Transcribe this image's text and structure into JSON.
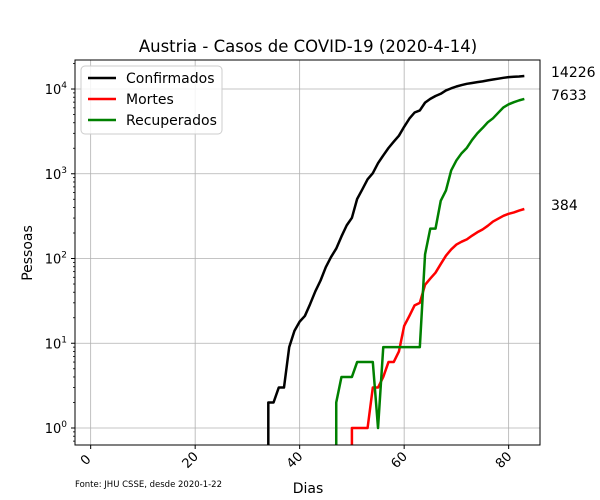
{
  "chart_data": {
    "type": "line",
    "title": "Austria - Casos de COVID-19 (2020-4-14)",
    "xlabel": "Dias",
    "ylabel": "Pessoas",
    "yscale": "log",
    "xlim": [
      -3,
      86
    ],
    "ylim": [
      0.63,
      22000
    ],
    "x_ticks": [
      0,
      20,
      40,
      60,
      80
    ],
    "y_ticks": [
      {
        "value": 1,
        "base": "10",
        "exp": "0"
      },
      {
        "value": 10,
        "base": "10",
        "exp": "1"
      },
      {
        "value": 100,
        "base": "10",
        "exp": "2"
      },
      {
        "value": 1000,
        "base": "10",
        "exp": "3"
      },
      {
        "value": 10000,
        "base": "10",
        "exp": "4"
      }
    ],
    "grid": true,
    "legend_position": "top-left",
    "series": [
      {
        "name": "Confirmados",
        "color": "#000000",
        "points": [
          [
            34,
            0.1
          ],
          [
            34,
            2
          ],
          [
            35,
            2
          ],
          [
            36,
            3
          ],
          [
            37,
            3
          ],
          [
            38,
            9
          ],
          [
            39,
            14
          ],
          [
            40,
            18
          ],
          [
            41,
            21
          ],
          [
            42,
            29
          ],
          [
            43,
            41
          ],
          [
            44,
            55
          ],
          [
            45,
            79
          ],
          [
            46,
            104
          ],
          [
            47,
            131
          ],
          [
            48,
            182
          ],
          [
            49,
            246
          ],
          [
            50,
            302
          ],
          [
            51,
            504
          ],
          [
            52,
            655
          ],
          [
            53,
            860
          ],
          [
            54,
            1016
          ],
          [
            55,
            1332
          ],
          [
            56,
            1646
          ],
          [
            57,
            2013
          ],
          [
            58,
            2388
          ],
          [
            59,
            2814
          ],
          [
            60,
            3582
          ],
          [
            61,
            4474
          ],
          [
            62,
            5283
          ],
          [
            63,
            5588
          ],
          [
            64,
            6909
          ],
          [
            65,
            7657
          ],
          [
            66,
            8271
          ],
          [
            67,
            8788
          ],
          [
            68,
            9618
          ],
          [
            69,
            10180
          ],
          [
            70,
            10711
          ],
          [
            71,
            11129
          ],
          [
            72,
            11524
          ],
          [
            73,
            11781
          ],
          [
            74,
            12051
          ],
          [
            75,
            12297
          ],
          [
            76,
            12639
          ],
          [
            77,
            12942
          ],
          [
            78,
            13244
          ],
          [
            79,
            13555
          ],
          [
            80,
            13806
          ],
          [
            81,
            13945
          ],
          [
            82,
            14041
          ],
          [
            83,
            14226
          ]
        ],
        "end_label": "14226"
      },
      {
        "name": "Mortes",
        "color": "#ff0000",
        "points": [
          [
            50,
            0.1
          ],
          [
            50,
            1
          ],
          [
            51,
            1
          ],
          [
            52,
            1
          ],
          [
            53,
            1
          ],
          [
            54,
            3
          ],
          [
            55,
            3
          ],
          [
            56,
            4
          ],
          [
            57,
            6
          ],
          [
            58,
            6
          ],
          [
            59,
            8
          ],
          [
            60,
            16
          ],
          [
            61,
            21
          ],
          [
            62,
            28
          ],
          [
            63,
            30
          ],
          [
            64,
            49
          ],
          [
            65,
            58
          ],
          [
            66,
            68
          ],
          [
            67,
            86
          ],
          [
            68,
            108
          ],
          [
            69,
            128
          ],
          [
            70,
            146
          ],
          [
            71,
            158
          ],
          [
            72,
            168
          ],
          [
            73,
            186
          ],
          [
            74,
            204
          ],
          [
            75,
            220
          ],
          [
            76,
            243
          ],
          [
            77,
            273
          ],
          [
            78,
            295
          ],
          [
            79,
            319
          ],
          [
            80,
            337
          ],
          [
            81,
            350
          ],
          [
            82,
            368
          ],
          [
            83,
            384
          ]
        ],
        "end_label": "384"
      },
      {
        "name": "Recuperados",
        "color": "#008000",
        "points": [
          [
            47,
            0.1
          ],
          [
            47,
            2
          ],
          [
            48,
            4
          ],
          [
            49,
            4
          ],
          [
            50,
            4
          ],
          [
            51,
            6
          ],
          [
            52,
            6
          ],
          [
            53,
            6
          ],
          [
            54,
            6
          ],
          [
            55,
            1
          ],
          [
            56,
            9
          ],
          [
            57,
            9
          ],
          [
            58,
            9
          ],
          [
            59,
            9
          ],
          [
            60,
            9
          ],
          [
            61,
            9
          ],
          [
            62,
            9
          ],
          [
            63,
            9
          ],
          [
            64,
            112
          ],
          [
            65,
            225
          ],
          [
            66,
            225
          ],
          [
            67,
            479
          ],
          [
            68,
            636
          ],
          [
            69,
            1095
          ],
          [
            70,
            1436
          ],
          [
            71,
            1749
          ],
          [
            72,
            2022
          ],
          [
            73,
            2507
          ],
          [
            74,
            2998
          ],
          [
            75,
            3463
          ],
          [
            76,
            4046
          ],
          [
            77,
            4512
          ],
          [
            78,
            5240
          ],
          [
            79,
            6064
          ],
          [
            80,
            6604
          ],
          [
            81,
            6987
          ],
          [
            82,
            7343
          ],
          [
            83,
            7633
          ]
        ],
        "end_label": "7633"
      }
    ],
    "source_note": "Fonte: JHU CSSE, desde 2020-1-22"
  }
}
